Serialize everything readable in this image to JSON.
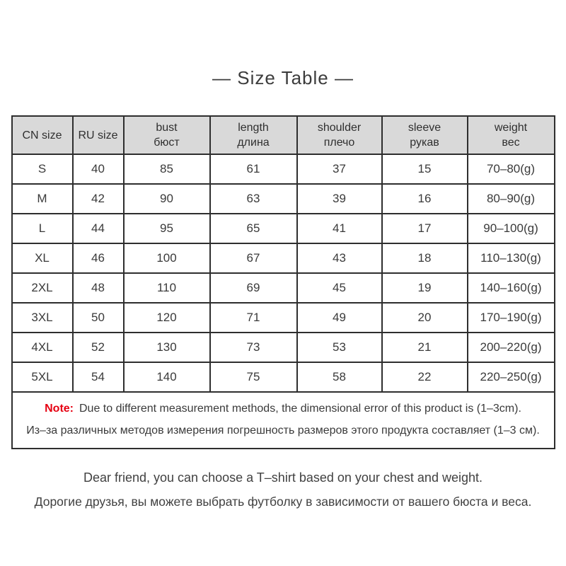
{
  "page": {
    "title": "— Size Table —",
    "note": {
      "label": "Note:",
      "text_en": "Due to different measurement methods, the dimensional error of this product is (1–3cm).",
      "text_ru": "Из–за различных методов измерения погрешность размеров этого продукта составляет (1–3 см)."
    },
    "footer": {
      "line_en": "Dear friend, you can choose a T–shirt based on your chest and weight.",
      "line_ru": "Дорогие друзья, вы можете выбрать футболку в зависимости от вашего бюста и веса."
    }
  },
  "size_table": {
    "columns": [
      {
        "en": "CN size",
        "ru": ""
      },
      {
        "en": "RU size",
        "ru": ""
      },
      {
        "en": "bust",
        "ru": "бюст"
      },
      {
        "en": "length",
        "ru": "длина"
      },
      {
        "en": "shoulder",
        "ru": "плечо"
      },
      {
        "en": "sleeve",
        "ru": "рукав"
      },
      {
        "en": "weight",
        "ru": "вес"
      }
    ],
    "rows": [
      [
        "S",
        "40",
        "85",
        "61",
        "37",
        "15",
        "70–80(g)"
      ],
      [
        "M",
        "42",
        "90",
        "63",
        "39",
        "16",
        "80–90(g)"
      ],
      [
        "L",
        "44",
        "95",
        "65",
        "41",
        "17",
        "90–100(g)"
      ],
      [
        "XL",
        "46",
        "100",
        "67",
        "43",
        "18",
        "110–130(g)"
      ],
      [
        "2XL",
        "48",
        "110",
        "69",
        "45",
        "19",
        "140–160(g)"
      ],
      [
        "3XL",
        "50",
        "120",
        "71",
        "49",
        "20",
        "170–190(g)"
      ],
      [
        "4XL",
        "52",
        "130",
        "73",
        "53",
        "21",
        "200–220(g)"
      ],
      [
        "5XL",
        "54",
        "140",
        "75",
        "58",
        "22",
        "220–250(g)"
      ]
    ]
  },
  "colors": {
    "header_background": "#d9d9d9",
    "table_border": "#2e2e2e",
    "note_label_red": "#e60012",
    "text": "#3a3a3a"
  }
}
